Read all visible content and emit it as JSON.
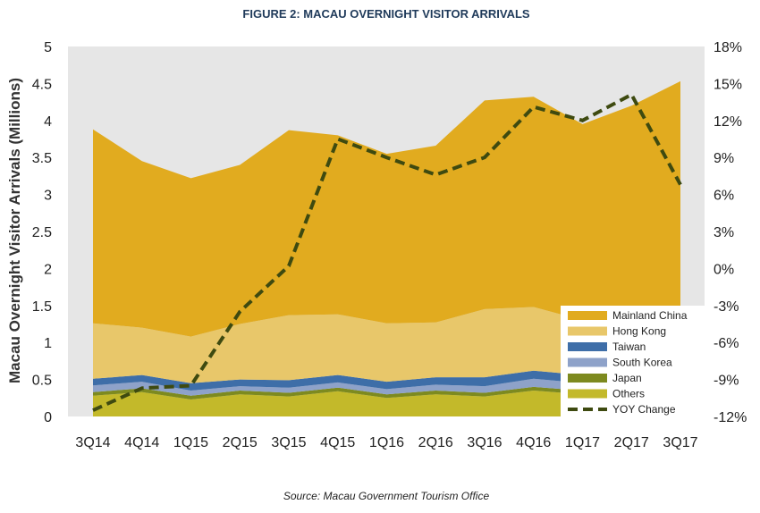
{
  "chart_data": {
    "type": "area",
    "title": "FIGURE 2: MACAU OVERNIGHT VISITOR ARRIVALS",
    "ylabel": "Macau Overnight Visitor Arrivals (Millions)",
    "source": "Source: Macau Government Tourism Office",
    "categories": [
      "3Q14",
      "4Q14",
      "1Q15",
      "2Q15",
      "3Q15",
      "4Q15",
      "1Q16",
      "2Q16",
      "3Q16",
      "4Q16",
      "1Q17",
      "2Q17",
      "3Q17"
    ],
    "ylim": [
      0,
      5
    ],
    "y_ticks": [
      "0",
      "0.5",
      "1",
      "1.5",
      "2",
      "2.5",
      "3",
      "3.5",
      "4",
      "4.5",
      "5"
    ],
    "y2lim": [
      -12,
      18
    ],
    "y2_ticks": [
      "-12%",
      "-9%",
      "-6%",
      "-3%",
      "0%",
      "3%",
      "6%",
      "9%",
      "12%",
      "15%",
      "18%"
    ],
    "stacked_series": [
      {
        "name": "Others",
        "color": "#c3b92a",
        "values": [
          0.28,
          0.33,
          0.23,
          0.3,
          0.27,
          0.34,
          0.25,
          0.3,
          0.27,
          0.35,
          0.3,
          0.33,
          0.36
        ]
      },
      {
        "name": "Japan",
        "color": "#7d8a1f",
        "values": [
          0.05,
          0.05,
          0.05,
          0.05,
          0.05,
          0.05,
          0.05,
          0.05,
          0.05,
          0.05,
          0.05,
          0.05,
          0.05
        ]
      },
      {
        "name": "South Korea",
        "color": "#8ea2c9",
        "values": [
          0.09,
          0.09,
          0.07,
          0.06,
          0.07,
          0.07,
          0.07,
          0.08,
          0.09,
          0.11,
          0.1,
          0.08,
          0.09
        ]
      },
      {
        "name": "Taiwan",
        "color": "#3e6ea8",
        "values": [
          0.09,
          0.09,
          0.1,
          0.09,
          0.1,
          0.1,
          0.1,
          0.1,
          0.12,
          0.11,
          0.11,
          0.1,
          0.1
        ]
      },
      {
        "name": "Hong Kong",
        "color": "#e8c76a",
        "values": [
          0.75,
          0.64,
          0.63,
          0.75,
          0.88,
          0.82,
          0.79,
          0.74,
          0.92,
          0.86,
          0.74,
          0.8,
          0.78
        ]
      },
      {
        "name": "Mainland China",
        "color": "#e1ab1f",
        "values": [
          2.62,
          2.25,
          2.14,
          2.15,
          2.5,
          2.42,
          2.29,
          2.39,
          2.82,
          2.84,
          2.65,
          2.84,
          3.15
        ]
      }
    ],
    "line_series": {
      "name": "YOY Change",
      "color": "#3e4a10",
      "values": [
        -11.5,
        -9.7,
        -9.5,
        -3.5,
        0.2,
        10.5,
        9.0,
        7.6,
        9.0,
        13.1,
        12.0,
        14.1,
        6.8
      ]
    },
    "legend": {
      "placement": "bottom-right",
      "items": [
        {
          "name": "Mainland China",
          "color": "#e1ab1f",
          "kind": "box"
        },
        {
          "name": "Hong Kong",
          "color": "#e8c76a",
          "kind": "box"
        },
        {
          "name": "Taiwan",
          "color": "#3e6ea8",
          "kind": "box"
        },
        {
          "name": "South Korea",
          "color": "#8ea2c9",
          "kind": "box"
        },
        {
          "name": "Japan",
          "color": "#7d8a1f",
          "kind": "box"
        },
        {
          "name": "Others",
          "color": "#c3b92a",
          "kind": "box"
        },
        {
          "name": "YOY Change",
          "color": "#3e4a10",
          "kind": "dash"
        }
      ]
    },
    "plot_background": "#e6e6e6",
    "grid": false
  }
}
